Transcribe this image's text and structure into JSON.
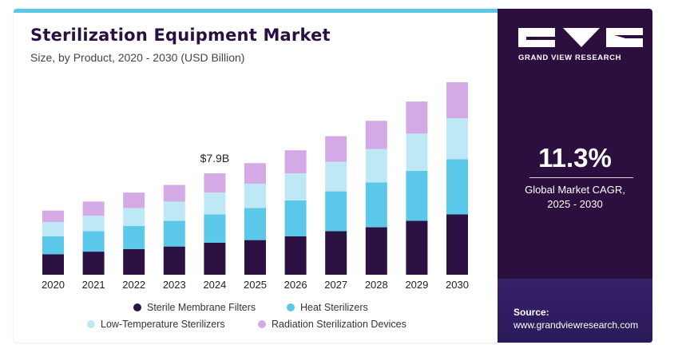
{
  "header": {
    "title": "Sterilization Equipment Market",
    "subtitle": "Size, by Product, 2020 - 2030 (USD Billion)"
  },
  "brand": {
    "name": "GRAND VIEW RESEARCH"
  },
  "stats": {
    "cagr_value": "11.3%",
    "cagr_label_line1": "Global Market CAGR,",
    "cagr_label_line2": "2025 - 2030"
  },
  "source": {
    "title": "Source:",
    "url": "www.grandviewresearch.com"
  },
  "colors": {
    "sterile_membrane_filters": "#2c1242",
    "heat_sterilizers": "#5bc8ea",
    "low_temperature_sterilizers": "#bfe8f6",
    "radiation_sterilization_devices": "#d3a9e6",
    "panel_background": "#2c0f3e"
  },
  "chart_data": {
    "type": "bar",
    "stacked": true,
    "title": "Sterilization Equipment Market",
    "subtitle": "Size, by Product, 2020 - 2030 (USD Billion)",
    "categories": [
      "2020",
      "2021",
      "2022",
      "2023",
      "2024",
      "2025",
      "2026",
      "2027",
      "2028",
      "2029",
      "2030"
    ],
    "series": [
      {
        "name": "Sterile Membrane Filters",
        "color": "#2c1242",
        "values": [
          1.6,
          1.8,
          2.0,
          2.2,
          2.5,
          2.7,
          3.0,
          3.4,
          3.7,
          4.2,
          4.7
        ]
      },
      {
        "name": "Heat Sterilizers",
        "color": "#5bc8ea",
        "values": [
          1.4,
          1.6,
          1.8,
          2.0,
          2.2,
          2.5,
          2.8,
          3.1,
          3.5,
          3.9,
          4.3
        ]
      },
      {
        "name": "Low-Temperature Sterilizers",
        "color": "#bfe8f6",
        "values": [
          1.1,
          1.2,
          1.4,
          1.5,
          1.7,
          1.9,
          2.1,
          2.3,
          2.6,
          2.9,
          3.2
        ]
      },
      {
        "name": "Radiation Sterilization Devices",
        "color": "#d3a9e6",
        "values": [
          0.9,
          1.1,
          1.2,
          1.3,
          1.5,
          1.6,
          1.8,
          2.0,
          2.2,
          2.5,
          2.8
        ]
      }
    ],
    "annotations": [
      {
        "category": "2024",
        "text": "$7.9B"
      }
    ],
    "ylim": [
      0,
      15.5
    ],
    "xlabel": "",
    "ylabel": "",
    "grid": false,
    "legend": "bottom-center"
  }
}
